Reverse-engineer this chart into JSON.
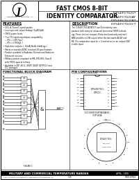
{
  "title_left": "FAST CMOS 8-BIT\nIDENTITY COMPARATOR",
  "title_right": "IDT54/FCT521T\nIDT54/FCT521AT\nIDT54/FCT521BT\nIDT54/FCT521CT",
  "logo_text": "Integrated Device Technology, Inc.",
  "features_title": "FEATURES",
  "features": [
    "50Ω, A, B and C speed grades",
    "Low input and output leakage (5μA/10μA)",
    "CMOS power levels",
    "True TTL input/output/open compatibility:",
    "  — Min = 4.4V (typ.)",
    "  — Min = 0.5V/typ. )",
    "High drive outputs (- 32mA/24mA, 64mA typ.)",
    "Meets or exceeds JEDEC standard 18 specifications",
    "Product available in Radiation Tolerant and Radiation",
    "  Enhanced versions",
    "Military product compliant to MIL-STD-883, Class B",
    "  with CMOS input at military",
    "Available in DIP, SO-IC, SSOP, QSOP, QFP/PLCC and",
    "  LCC packages"
  ],
  "desc_title": "DESCRIPTION",
  "desc_text": "The IDT54/FCT521AT/BT/CT use 8-bit identity com-\nparators built using an advanced dual metal CMOS technol-\nogy. These devices compare 8 bits simultaneously and each\nAND provides a LOW output when the two words A0-A7 and\nB4. The comparator input be = 0 and serves as an output LOW\nenable input.",
  "block_title": "FUNCTIONAL BLOCK DIAGRAM",
  "pin_title": "PIN CONFIGURATIONS",
  "bottom_bar": "MILITARY AND COMMERCIAL TEMPERATURE RANGES",
  "bottom_right": "APRIL, 1988",
  "inputs_a": [
    "A0",
    "A1",
    "A2",
    "A3",
    "A4",
    "A5",
    "A6",
    "A7"
  ],
  "inputs_b": [
    "B0",
    "B1",
    "B2",
    "B3",
    "B4",
    "B5",
    "B6",
    "B7"
  ],
  "left_pins": [
    "B4",
    "A4",
    "A5",
    "B5",
    "A6",
    "B6",
    "A7",
    "B7",
    "OE",
    "A=B"
  ],
  "right_pins": [
    "VCC",
    "B0",
    "A0",
    "A1",
    "B1",
    "A2",
    "B2",
    "A3",
    "B3",
    "GND"
  ],
  "bg_color": "#ffffff",
  "text_color": "#000000"
}
